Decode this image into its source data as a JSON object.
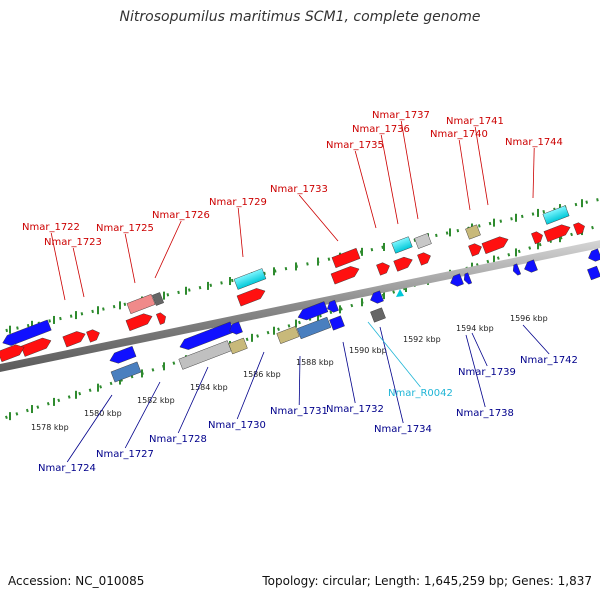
{
  "title": "Nitrosopumilus maritimus SCM1, complete genome",
  "footer": {
    "accession": "Accession: NC_010085",
    "topology": "Topology: circular; Length: 1,645,259 bp; Genes: 1,837"
  },
  "colors": {
    "forward_gene": "#ff0000",
    "reverse_gene": "#0000ff",
    "rna_gene": "#00c8d8",
    "axis": "#8c8c8c",
    "tick": "#2e8b2e",
    "top_label": "#cc0000",
    "bottom_label": "#00008b",
    "rna_label": "#1fb5d6"
  },
  "scale_ticks": [
    "1578 kbp",
    "1580 kbp",
    "1582 kbp",
    "1584 kbp",
    "1586 kbp",
    "1588 kbp",
    "1590 kbp",
    "1592 kbp",
    "1594 kbp",
    "1596 kbp"
  ],
  "top_labels": [
    "Nmar_1722",
    "Nmar_1723",
    "Nmar_1725",
    "Nmar_1726",
    "Nmar_1729",
    "Nmar_1733",
    "Nmar_1735",
    "Nmar_1736",
    "Nmar_1737",
    "Nmar_1740",
    "Nmar_1741",
    "Nmar_1744"
  ],
  "bottom_labels": [
    "Nmar_1724",
    "Nmar_1727",
    "Nmar_1728",
    "Nmar_1730",
    "Nmar_1731",
    "Nmar_1732",
    "Nmar_1734",
    "Nmar_R0042",
    "Nmar_1738",
    "Nmar_1739",
    "Nmar_1742"
  ]
}
